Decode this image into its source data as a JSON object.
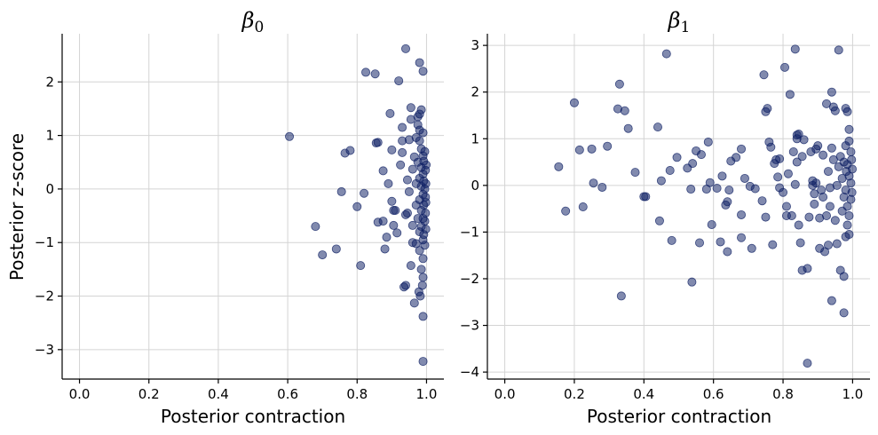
{
  "chart_data": [
    {
      "type": "scatter",
      "title": "β",
      "title_subscript": "0",
      "xlabel": "Posterior contraction",
      "ylabel": "Posterior z-score",
      "xlim": [
        -0.05,
        1.05
      ],
      "ylim": [
        -3.55,
        2.9
      ],
      "xticks": [
        0.0,
        0.2,
        0.4,
        0.6,
        0.8,
        1.0
      ],
      "xtick_labels": [
        "0.0",
        "0.2",
        "0.4",
        "0.6",
        "0.8",
        "1.0"
      ],
      "yticks": [
        -3,
        -2,
        -1,
        0,
        1,
        2
      ],
      "ytick_labels": [
        "−3",
        "−2",
        "−1",
        "0",
        "1",
        "2"
      ],
      "grid": true,
      "point_color": "#0d1f63",
      "points": [
        [
          0.605,
          0.98
        ],
        [
          0.68,
          -0.7
        ],
        [
          0.7,
          -1.23
        ],
        [
          0.74,
          -1.12
        ],
        [
          0.755,
          -0.05
        ],
        [
          0.765,
          0.67
        ],
        [
          0.78,
          0.72
        ],
        [
          0.8,
          -0.33
        ],
        [
          0.81,
          -1.43
        ],
        [
          0.82,
          -0.08
        ],
        [
          0.825,
          2.18
        ],
        [
          0.852,
          2.15
        ],
        [
          0.855,
          0.86
        ],
        [
          0.86,
          0.87
        ],
        [
          0.86,
          -0.62
        ],
        [
          0.875,
          0.34
        ],
        [
          0.875,
          -0.6
        ],
        [
          0.88,
          -1.12
        ],
        [
          0.885,
          -0.9
        ],
        [
          0.89,
          0.1
        ],
        [
          0.895,
          1.41
        ],
        [
          0.9,
          0.73
        ],
        [
          0.9,
          -0.23
        ],
        [
          0.905,
          -0.4
        ],
        [
          0.91,
          -0.4
        ],
        [
          0.905,
          -0.68
        ],
        [
          0.915,
          -0.82
        ],
        [
          0.92,
          2.02
        ],
        [
          0.925,
          0.45
        ],
        [
          0.93,
          0.68
        ],
        [
          0.93,
          0.9
        ],
        [
          0.93,
          1.15
        ],
        [
          0.94,
          2.62
        ],
        [
          0.935,
          -1.83
        ],
        [
          0.94,
          -1.8
        ],
        [
          0.94,
          -0.48
        ],
        [
          0.945,
          -0.45
        ],
        [
          0.945,
          0.17
        ],
        [
          0.95,
          -0.05
        ],
        [
          0.95,
          0.92
        ],
        [
          0.955,
          1.52
        ],
        [
          0.955,
          1.3
        ],
        [
          0.955,
          -1.43
        ],
        [
          0.96,
          -1.0
        ],
        [
          0.96,
          -0.68
        ],
        [
          0.96,
          0.37
        ],
        [
          0.965,
          0.6
        ],
        [
          0.965,
          -2.13
        ],
        [
          0.97,
          -1.02
        ],
        [
          0.97,
          -0.3
        ],
        [
          0.97,
          0.1
        ],
        [
          0.97,
          0.96
        ],
        [
          0.975,
          1.35
        ],
        [
          0.975,
          1.2
        ],
        [
          0.975,
          0.5
        ],
        [
          0.975,
          -0.55
        ],
        [
          0.978,
          -1.92
        ],
        [
          0.98,
          2.36
        ],
        [
          0.98,
          1.4
        ],
        [
          0.98,
          1.1
        ],
        [
          0.98,
          0.9
        ],
        [
          0.98,
          0.2
        ],
        [
          0.98,
          -0.2
        ],
        [
          0.98,
          -0.8
        ],
        [
          0.98,
          -1.15
        ],
        [
          0.982,
          -2.0
        ],
        [
          0.985,
          1.48
        ],
        [
          0.985,
          0.75
        ],
        [
          0.985,
          0.4
        ],
        [
          0.985,
          0.05
        ],
        [
          0.985,
          -0.4
        ],
        [
          0.985,
          -0.7
        ],
        [
          0.985,
          -1.5
        ],
        [
          0.988,
          -1.8
        ],
        [
          0.99,
          2.2
        ],
        [
          0.99,
          1.05
        ],
        [
          0.99,
          0.62
        ],
        [
          0.99,
          0.28
        ],
        [
          0.99,
          -0.1
        ],
        [
          0.99,
          -0.55
        ],
        [
          0.99,
          -0.95
        ],
        [
          0.99,
          -1.3
        ],
        [
          0.99,
          -1.65
        ],
        [
          0.99,
          -2.38
        ],
        [
          0.99,
          -3.22
        ],
        [
          0.992,
          0.52
        ],
        [
          0.992,
          0.15
        ],
        [
          0.992,
          -0.3
        ],
        [
          0.992,
          -0.85
        ],
        [
          0.995,
          0.7
        ],
        [
          0.995,
          0.0
        ],
        [
          0.995,
          -0.6
        ],
        [
          0.995,
          -1.05
        ],
        [
          0.997,
          0.35
        ],
        [
          0.997,
          -0.15
        ],
        [
          0.997,
          -0.45
        ],
        [
          0.998,
          0.1
        ],
        [
          0.998,
          -0.25
        ],
        [
          0.998,
          -0.75
        ],
        [
          0.999,
          0.45
        ]
      ]
    },
    {
      "type": "scatter",
      "title": "β",
      "title_subscript": "1",
      "xlabel": "Posterior contraction",
      "ylabel": "",
      "xlim": [
        -0.05,
        1.05
      ],
      "ylim": [
        -4.15,
        3.25
      ],
      "xticks": [
        0.0,
        0.2,
        0.4,
        0.6,
        0.8,
        1.0
      ],
      "xtick_labels": [
        "0.0",
        "0.2",
        "0.4",
        "0.6",
        "0.8",
        "1.0"
      ],
      "yticks": [
        -4,
        -3,
        -2,
        -1,
        0,
        1,
        2,
        3
      ],
      "ytick_labels": [
        "−4",
        "−3",
        "−2",
        "−1",
        "0",
        "1",
        "2",
        "3"
      ],
      "grid": true,
      "point_color": "#0d1f63",
      "points": [
        [
          0.155,
          0.4
        ],
        [
          0.175,
          -0.55
        ],
        [
          0.2,
          1.77
        ],
        [
          0.215,
          0.76
        ],
        [
          0.225,
          -0.46
        ],
        [
          0.25,
          0.78
        ],
        [
          0.255,
          0.05
        ],
        [
          0.28,
          -0.04
        ],
        [
          0.295,
          0.84
        ],
        [
          0.325,
          1.64
        ],
        [
          0.33,
          2.17
        ],
        [
          0.335,
          -2.37
        ],
        [
          0.345,
          1.6
        ],
        [
          0.355,
          1.22
        ],
        [
          0.375,
          0.28
        ],
        [
          0.4,
          -0.24
        ],
        [
          0.405,
          -0.24
        ],
        [
          0.44,
          1.25
        ],
        [
          0.445,
          -0.76
        ],
        [
          0.45,
          0.1
        ],
        [
          0.465,
          2.82
        ],
        [
          0.475,
          0.32
        ],
        [
          0.48,
          -1.18
        ],
        [
          0.495,
          0.6
        ],
        [
          0.525,
          0.37
        ],
        [
          0.535,
          -0.08
        ],
        [
          0.538,
          -2.07
        ],
        [
          0.54,
          0.47
        ],
        [
          0.55,
          0.74
        ],
        [
          0.56,
          -1.23
        ],
        [
          0.565,
          0.66
        ],
        [
          0.58,
          -0.08
        ],
        [
          0.585,
          0.93
        ],
        [
          0.59,
          0.06
        ],
        [
          0.595,
          -0.84
        ],
        [
          0.61,
          -0.06
        ],
        [
          0.62,
          -1.21
        ],
        [
          0.625,
          0.2
        ],
        [
          0.635,
          -0.42
        ],
        [
          0.64,
          -1.42
        ],
        [
          0.64,
          -0.35
        ],
        [
          0.645,
          -0.1
        ],
        [
          0.65,
          0.52
        ],
        [
          0.665,
          0.6
        ],
        [
          0.68,
          -1.12
        ],
        [
          0.68,
          -0.63
        ],
        [
          0.68,
          0.78
        ],
        [
          0.69,
          0.15
        ],
        [
          0.705,
          -0.02
        ],
        [
          0.71,
          -1.35
        ],
        [
          0.72,
          -0.07
        ],
        [
          0.74,
          -0.33
        ],
        [
          0.745,
          2.37
        ],
        [
          0.75,
          1.58
        ],
        [
          0.75,
          -0.68
        ],
        [
          0.755,
          1.65
        ],
        [
          0.76,
          0.93
        ],
        [
          0.765,
          0.82
        ],
        [
          0.77,
          -1.27
        ],
        [
          0.775,
          0.47
        ],
        [
          0.78,
          0.55
        ],
        [
          0.785,
          0.18
        ],
        [
          0.79,
          0.57
        ],
        [
          0.79,
          -0.05
        ],
        [
          0.8,
          -0.15
        ],
        [
          0.805,
          2.53
        ],
        [
          0.81,
          -0.45
        ],
        [
          0.81,
          -0.65
        ],
        [
          0.815,
          0.25
        ],
        [
          0.82,
          1.95
        ],
        [
          0.825,
          -0.65
        ],
        [
          0.83,
          0.72
        ],
        [
          0.835,
          2.92
        ],
        [
          0.835,
          0.02
        ],
        [
          0.84,
          1.08
        ],
        [
          0.84,
          1.0
        ],
        [
          0.84,
          0.5
        ],
        [
          0.845,
          1.1
        ],
        [
          0.845,
          -0.85
        ],
        [
          0.85,
          -1.23
        ],
        [
          0.855,
          0.62
        ],
        [
          0.855,
          -1.82
        ],
        [
          0.86,
          0.98
        ],
        [
          0.87,
          -1.78
        ],
        [
          0.87,
          -3.81
        ],
        [
          0.875,
          -0.68
        ],
        [
          0.88,
          0.72
        ],
        [
          0.885,
          0.1
        ],
        [
          0.885,
          0.0
        ],
        [
          0.89,
          -0.18
        ],
        [
          0.89,
          -0.4
        ],
        [
          0.895,
          0.78
        ],
        [
          0.895,
          0.05
        ],
        [
          0.9,
          0.85
        ],
        [
          0.905,
          -0.7
        ],
        [
          0.905,
          -1.35
        ],
        [
          0.91,
          -0.1
        ],
        [
          0.915,
          0.65
        ],
        [
          0.915,
          -0.25
        ],
        [
          0.92,
          -1.42
        ],
        [
          0.925,
          1.75
        ],
        [
          0.925,
          -0.65
        ],
        [
          0.93,
          -1.28
        ],
        [
          0.93,
          0.3
        ],
        [
          0.935,
          -0.45
        ],
        [
          0.935,
          -0.05
        ],
        [
          0.94,
          2.0
        ],
        [
          0.94,
          -2.47
        ],
        [
          0.94,
          0.8
        ],
        [
          0.945,
          1.68
        ],
        [
          0.945,
          0.55
        ],
        [
          0.95,
          1.6
        ],
        [
          0.95,
          -0.75
        ],
        [
          0.955,
          -1.25
        ],
        [
          0.955,
          0.0
        ],
        [
          0.96,
          2.9
        ],
        [
          0.96,
          0.4
        ],
        [
          0.965,
          -1.82
        ],
        [
          0.965,
          0.62
        ],
        [
          0.97,
          -0.55
        ],
        [
          0.97,
          0.15
        ],
        [
          0.975,
          -1.95
        ],
        [
          0.975,
          -2.73
        ],
        [
          0.975,
          0.5
        ],
        [
          0.975,
          -0.25
        ],
        [
          0.98,
          1.65
        ],
        [
          0.98,
          0.85
        ],
        [
          0.98,
          -0.1
        ],
        [
          0.98,
          -1.1
        ],
        [
          0.982,
          0.3
        ],
        [
          0.985,
          1.58
        ],
        [
          0.985,
          -0.85
        ],
        [
          0.985,
          0.45
        ],
        [
          0.985,
          -0.45
        ],
        [
          0.99,
          1.2
        ],
        [
          0.99,
          0.95
        ],
        [
          0.99,
          0.2
        ],
        [
          0.99,
          -0.65
        ],
        [
          0.99,
          -1.05
        ],
        [
          0.995,
          0.72
        ],
        [
          0.995,
          0.05
        ],
        [
          0.995,
          -0.3
        ],
        [
          0.997,
          0.55
        ],
        [
          0.998,
          -0.15
        ],
        [
          0.999,
          0.35
        ]
      ]
    }
  ]
}
